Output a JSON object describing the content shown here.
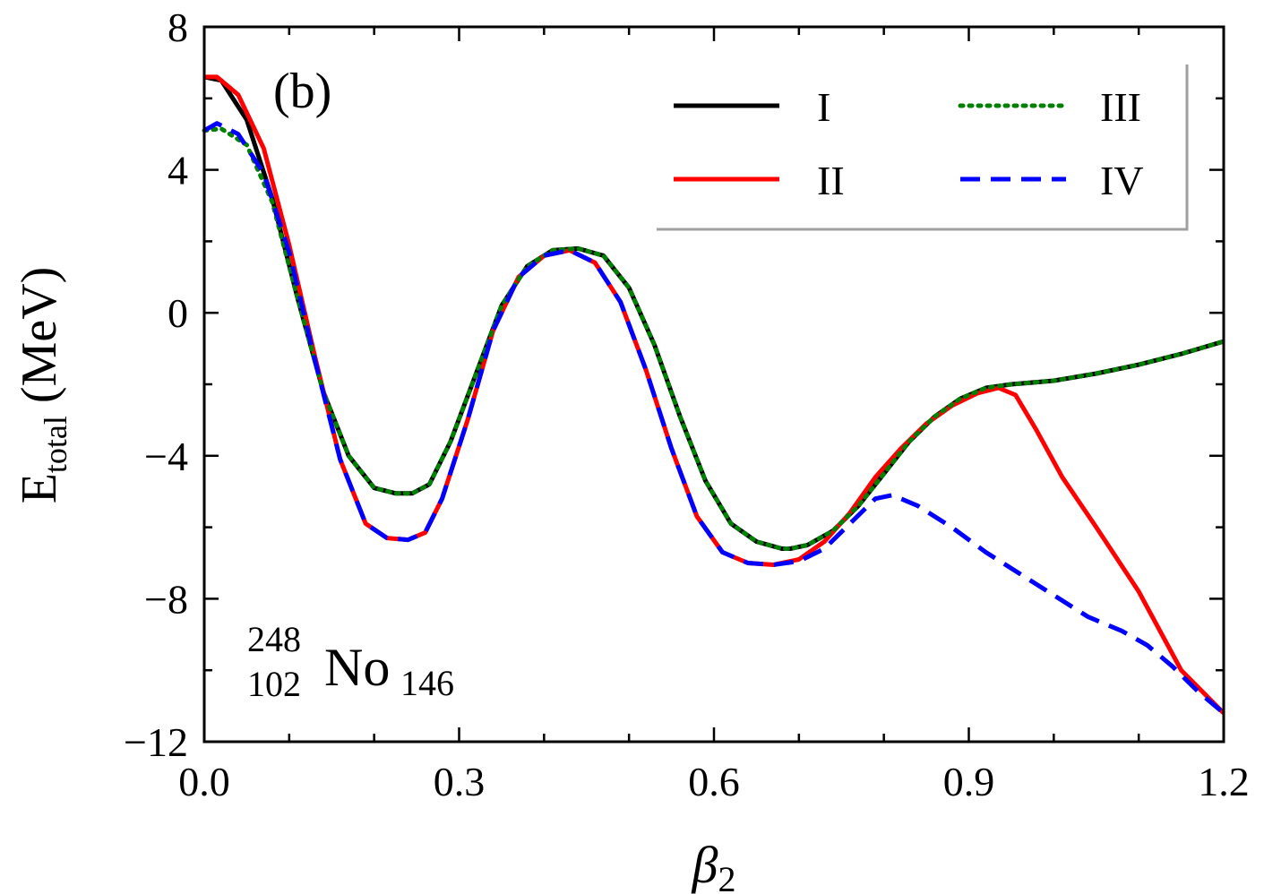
{
  "chart_data": {
    "type": "line",
    "panel_label": "(b)",
    "nucleus": {
      "mass_number": "248",
      "atomic_number": "102",
      "symbol": "No",
      "neutron_number": "146"
    },
    "xlabel": {
      "symbol": "β",
      "subscript": "2"
    },
    "ylabel": {
      "main": "E",
      "subscript": "total",
      "unit": " (MeV)"
    },
    "xlim": [
      0.0,
      1.2
    ],
    "ylim": [
      -12,
      8
    ],
    "x_ticks": [
      "0.0",
      "0.3",
      "0.6",
      "0.9",
      "1.2"
    ],
    "y_ticks": [
      "8",
      "4",
      "0",
      "−4",
      "−8",
      "−12"
    ],
    "legend_position": "top-right",
    "series": [
      {
        "name": "I",
        "color": "#000000",
        "dash": "solid",
        "x": [
          0.0,
          0.02,
          0.05,
          0.08,
          0.11,
          0.14,
          0.17,
          0.2,
          0.225,
          0.245,
          0.265,
          0.29,
          0.32,
          0.35,
          0.38,
          0.41,
          0.44,
          0.47,
          0.5,
          0.53,
          0.56,
          0.59,
          0.62,
          0.65,
          0.68,
          0.69,
          0.71,
          0.74,
          0.77,
          0.8,
          0.83,
          0.86,
          0.89,
          0.92,
          0.95,
          1.0,
          1.05,
          1.1,
          1.15,
          1.2
        ],
        "y": [
          6.6,
          6.5,
          5.4,
          3.2,
          0.4,
          -2.2,
          -4.0,
          -4.9,
          -5.05,
          -5.05,
          -4.8,
          -3.6,
          -1.7,
          0.2,
          1.3,
          1.75,
          1.8,
          1.6,
          0.7,
          -0.9,
          -2.9,
          -4.7,
          -5.9,
          -6.4,
          -6.6,
          -6.6,
          -6.5,
          -6.1,
          -5.4,
          -4.5,
          -3.6,
          -2.9,
          -2.4,
          -2.1,
          -2.0,
          -1.9,
          -1.7,
          -1.45,
          -1.15,
          -0.8
        ]
      },
      {
        "name": "II",
        "color": "#ff0000",
        "dash": "solid",
        "x": [
          0.0,
          0.015,
          0.04,
          0.07,
          0.1,
          0.13,
          0.16,
          0.19,
          0.215,
          0.24,
          0.26,
          0.28,
          0.31,
          0.34,
          0.37,
          0.4,
          0.43,
          0.46,
          0.49,
          0.52,
          0.55,
          0.58,
          0.61,
          0.64,
          0.67,
          0.7,
          0.73,
          0.76,
          0.79,
          0.82,
          0.85,
          0.88,
          0.91,
          0.935,
          0.955,
          0.98,
          1.01,
          1.05,
          1.1,
          1.15,
          1.2
        ],
        "y": [
          6.6,
          6.6,
          6.1,
          4.6,
          1.9,
          -1.2,
          -4.1,
          -5.9,
          -6.3,
          -6.35,
          -6.15,
          -5.2,
          -3.0,
          -0.5,
          1.0,
          1.6,
          1.75,
          1.4,
          0.3,
          -1.6,
          -3.8,
          -5.7,
          -6.7,
          -7.0,
          -7.05,
          -6.9,
          -6.4,
          -5.6,
          -4.6,
          -3.8,
          -3.1,
          -2.6,
          -2.25,
          -2.1,
          -2.3,
          -3.3,
          -4.6,
          -6.0,
          -7.8,
          -10.0,
          -11.2
        ]
      },
      {
        "name": "III",
        "color": "#008000",
        "dash": "dotted",
        "x": [
          0.0,
          0.02,
          0.05,
          0.08,
          0.11,
          0.14,
          0.17,
          0.2,
          0.225,
          0.245,
          0.265,
          0.29,
          0.32,
          0.35,
          0.38,
          0.41,
          0.44,
          0.47,
          0.5,
          0.53,
          0.56,
          0.59,
          0.62,
          0.65,
          0.68,
          0.69,
          0.71,
          0.74,
          0.77,
          0.8,
          0.83,
          0.86,
          0.89,
          0.92,
          0.95,
          1.0,
          1.05,
          1.1,
          1.15,
          1.2
        ],
        "y": [
          5.1,
          5.15,
          4.7,
          3.1,
          0.4,
          -2.2,
          -4.0,
          -4.9,
          -5.05,
          -5.05,
          -4.8,
          -3.6,
          -1.7,
          0.2,
          1.3,
          1.75,
          1.8,
          1.6,
          0.7,
          -0.9,
          -2.9,
          -4.7,
          -5.9,
          -6.4,
          -6.6,
          -6.6,
          -6.5,
          -6.1,
          -5.4,
          -4.5,
          -3.6,
          -2.9,
          -2.4,
          -2.1,
          -2.0,
          -1.9,
          -1.7,
          -1.45,
          -1.15,
          -0.8
        ]
      },
      {
        "name": "IV",
        "color": "#0000ff",
        "dash": "dashed",
        "x": [
          0.0,
          0.015,
          0.04,
          0.07,
          0.1,
          0.13,
          0.16,
          0.19,
          0.215,
          0.24,
          0.26,
          0.28,
          0.31,
          0.34,
          0.37,
          0.4,
          0.43,
          0.46,
          0.49,
          0.52,
          0.55,
          0.58,
          0.61,
          0.64,
          0.67,
          0.7,
          0.73,
          0.76,
          0.79,
          0.81,
          0.84,
          0.88,
          0.92,
          0.96,
          1.0,
          1.04,
          1.08,
          1.11,
          1.14,
          1.17,
          1.2
        ],
        "y": [
          5.1,
          5.3,
          5.0,
          3.9,
          1.7,
          -1.3,
          -4.1,
          -5.9,
          -6.3,
          -6.35,
          -6.15,
          -5.2,
          -3.0,
          -0.5,
          1.0,
          1.6,
          1.75,
          1.4,
          0.3,
          -1.6,
          -3.8,
          -5.7,
          -6.7,
          -7.0,
          -7.05,
          -6.95,
          -6.6,
          -5.9,
          -5.2,
          -5.1,
          -5.4,
          -6.0,
          -6.7,
          -7.3,
          -7.9,
          -8.5,
          -8.9,
          -9.3,
          -9.9,
          -10.6,
          -11.2
        ]
      }
    ]
  }
}
